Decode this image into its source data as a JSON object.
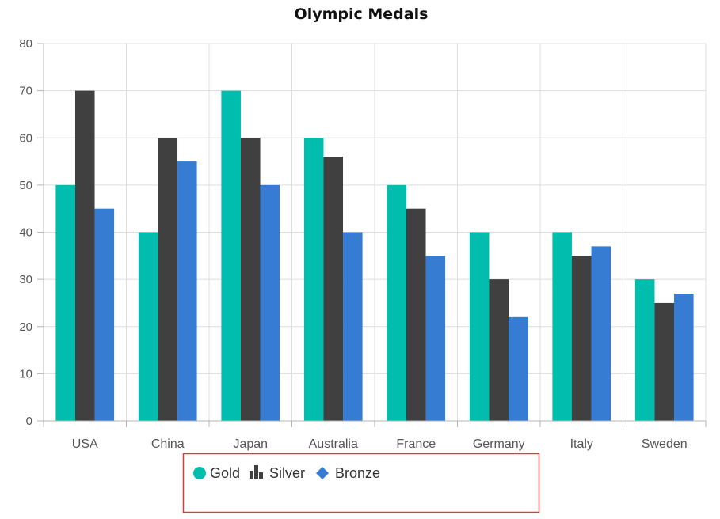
{
  "chart_data": {
    "type": "bar",
    "title": "Olympic Medals",
    "xlabel": "",
    "ylabel": "",
    "categories": [
      "USA",
      "China",
      "Japan",
      "Australia",
      "France",
      "Germany",
      "Italy",
      "Sweden"
    ],
    "series": [
      {
        "name": "Gold",
        "color": "#00bdae",
        "values": [
          50,
          40,
          70,
          60,
          50,
          40,
          40,
          30
        ]
      },
      {
        "name": "Silver",
        "color": "#404041",
        "values": [
          70,
          60,
          60,
          56,
          45,
          30,
          35,
          25
        ]
      },
      {
        "name": "Bronze",
        "color": "#357cd2",
        "values": [
          45,
          55,
          50,
          40,
          35,
          22,
          37,
          27
        ]
      }
    ],
    "ylim": [
      0,
      80
    ],
    "yticks": [
      0,
      10,
      20,
      30,
      40,
      50,
      60,
      70,
      80
    ],
    "grid": true,
    "legend": {
      "position": "bottom",
      "items": [
        {
          "label": "Gold",
          "icon": "circle-icon"
        },
        {
          "label": "Silver",
          "icon": "column-chart-icon"
        },
        {
          "label": "Bronze",
          "icon": "diamond-icon"
        }
      ],
      "highlight_border_color": "#e0383b"
    }
  }
}
